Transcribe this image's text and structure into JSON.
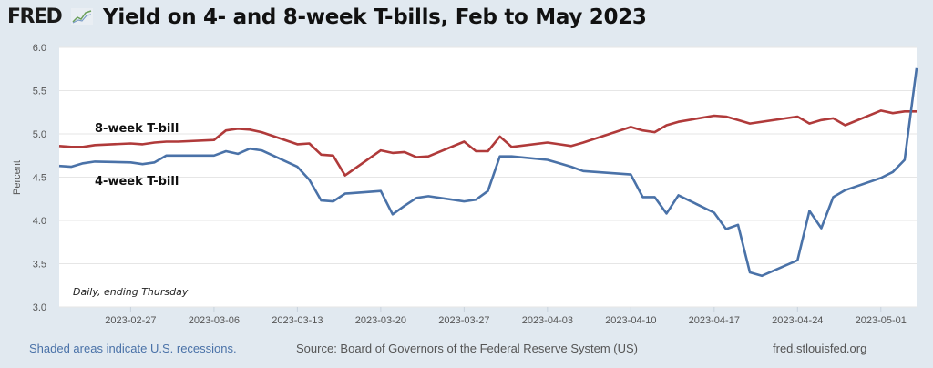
{
  "header": {
    "logo_text": "FRED",
    "logo_icon": "chart-line-icon",
    "title": "Yield on 4- and 8-week T-bills, Feb to May 2023"
  },
  "footer": {
    "recession_note": "Shaded areas indicate U.S. recessions.",
    "source": "Source: Board of Governors of the Federal Reserve System (US)",
    "site": "fred.stlouisfed.org"
  },
  "colors": {
    "background": "#e1e9f0",
    "plot_bg": "#ffffff",
    "grid": "#e6e6e6",
    "series_8wk": "#b03a3a",
    "series_4wk": "#4a72a8"
  },
  "chart_data": {
    "type": "line",
    "title": "Yield on 4- and 8-week T-bills, Feb to May 2023",
    "xlabel": "",
    "ylabel": "Percent",
    "ylim": [
      3.0,
      6.0
    ],
    "yticks": [
      "3.0",
      "3.5",
      "4.0",
      "4.5",
      "5.0",
      "5.5",
      "6.0"
    ],
    "xlim": [
      "2023-02-21",
      "2023-05-04"
    ],
    "xticks": [
      "2023-02-27",
      "2023-03-06",
      "2023-03-13",
      "2023-03-20",
      "2023-03-27",
      "2023-04-03",
      "2023-04-10",
      "2023-04-17",
      "2023-04-24",
      "2023-05-01"
    ],
    "grid": true,
    "annotation": "Daily, ending Thursday",
    "legend": "inline-labels",
    "series": [
      {
        "name": "8-week T-bill",
        "points": [
          [
            "2023-02-21",
            4.86
          ],
          [
            "2023-02-22",
            4.85
          ],
          [
            "2023-02-23",
            4.85
          ],
          [
            "2023-02-24",
            4.87
          ],
          [
            "2023-02-27",
            4.89
          ],
          [
            "2023-02-28",
            4.88
          ],
          [
            "2023-03-01",
            4.9
          ],
          [
            "2023-03-02",
            4.91
          ],
          [
            "2023-03-03",
            4.91
          ],
          [
            "2023-03-06",
            4.93
          ],
          [
            "2023-03-07",
            5.04
          ],
          [
            "2023-03-08",
            5.06
          ],
          [
            "2023-03-09",
            5.05
          ],
          [
            "2023-03-10",
            5.02
          ],
          [
            "2023-03-13",
            4.88
          ],
          [
            "2023-03-14",
            4.89
          ],
          [
            "2023-03-15",
            4.76
          ],
          [
            "2023-03-16",
            4.75
          ],
          [
            "2023-03-17",
            4.52
          ],
          [
            "2023-03-20",
            4.81
          ],
          [
            "2023-03-21",
            4.78
          ],
          [
            "2023-03-22",
            4.79
          ],
          [
            "2023-03-23",
            4.73
          ],
          [
            "2023-03-24",
            4.74
          ],
          [
            "2023-03-27",
            4.91
          ],
          [
            "2023-03-28",
            4.8
          ],
          [
            "2023-03-29",
            4.8
          ],
          [
            "2023-03-30",
            4.97
          ],
          [
            "2023-03-31",
            4.85
          ],
          [
            "2023-04-03",
            4.9
          ],
          [
            "2023-04-04",
            4.88
          ],
          [
            "2023-04-05",
            4.86
          ],
          [
            "2023-04-06",
            4.9
          ],
          [
            "2023-04-10",
            5.08
          ],
          [
            "2023-04-11",
            5.04
          ],
          [
            "2023-04-12",
            5.02
          ],
          [
            "2023-04-13",
            5.1
          ],
          [
            "2023-04-14",
            5.14
          ],
          [
            "2023-04-17",
            5.21
          ],
          [
            "2023-04-18",
            5.2
          ],
          [
            "2023-04-19",
            5.16
          ],
          [
            "2023-04-20",
            5.12
          ],
          [
            "2023-04-24",
            5.2
          ],
          [
            "2023-04-25",
            5.12
          ],
          [
            "2023-04-26",
            5.16
          ],
          [
            "2023-04-27",
            5.18
          ],
          [
            "2023-04-28",
            5.1
          ],
          [
            "2023-05-01",
            5.27
          ],
          [
            "2023-05-02",
            5.24
          ],
          [
            "2023-05-03",
            5.26
          ],
          [
            "2023-05-04",
            5.26
          ]
        ]
      },
      {
        "name": "4-week T-bill",
        "points": [
          [
            "2023-02-21",
            4.63
          ],
          [
            "2023-02-22",
            4.62
          ],
          [
            "2023-02-23",
            4.66
          ],
          [
            "2023-02-24",
            4.68
          ],
          [
            "2023-02-27",
            4.67
          ],
          [
            "2023-02-28",
            4.65
          ],
          [
            "2023-03-01",
            4.67
          ],
          [
            "2023-03-02",
            4.75
          ],
          [
            "2023-03-03",
            4.75
          ],
          [
            "2023-03-06",
            4.75
          ],
          [
            "2023-03-07",
            4.8
          ],
          [
            "2023-03-08",
            4.77
          ],
          [
            "2023-03-09",
            4.83
          ],
          [
            "2023-03-10",
            4.81
          ],
          [
            "2023-03-13",
            4.62
          ],
          [
            "2023-03-14",
            4.47
          ],
          [
            "2023-03-15",
            4.23
          ],
          [
            "2023-03-16",
            4.22
          ],
          [
            "2023-03-17",
            4.31
          ],
          [
            "2023-03-20",
            4.34
          ],
          [
            "2023-03-21",
            4.07
          ],
          [
            "2023-03-22",
            4.17
          ],
          [
            "2023-03-23",
            4.26
          ],
          [
            "2023-03-24",
            4.28
          ],
          [
            "2023-03-27",
            4.22
          ],
          [
            "2023-03-28",
            4.24
          ],
          [
            "2023-03-29",
            4.34
          ],
          [
            "2023-03-30",
            4.74
          ],
          [
            "2023-03-31",
            4.74
          ],
          [
            "2023-04-03",
            4.7
          ],
          [
            "2023-04-04",
            4.66
          ],
          [
            "2023-04-05",
            4.62
          ],
          [
            "2023-04-06",
            4.57
          ],
          [
            "2023-04-10",
            4.53
          ],
          [
            "2023-04-11",
            4.27
          ],
          [
            "2023-04-12",
            4.27
          ],
          [
            "2023-04-13",
            4.08
          ],
          [
            "2023-04-14",
            4.29
          ],
          [
            "2023-04-17",
            4.09
          ],
          [
            "2023-04-18",
            3.9
          ],
          [
            "2023-04-19",
            3.95
          ],
          [
            "2023-04-20",
            3.4
          ],
          [
            "2023-04-21",
            3.36
          ],
          [
            "2023-04-24",
            3.54
          ],
          [
            "2023-04-25",
            4.11
          ],
          [
            "2023-04-26",
            3.91
          ],
          [
            "2023-04-27",
            4.27
          ],
          [
            "2023-04-28",
            4.35
          ],
          [
            "2023-05-01",
            4.49
          ],
          [
            "2023-05-02",
            4.56
          ],
          [
            "2023-05-03",
            4.7
          ],
          [
            "2023-05-04",
            5.76
          ]
        ]
      }
    ]
  }
}
